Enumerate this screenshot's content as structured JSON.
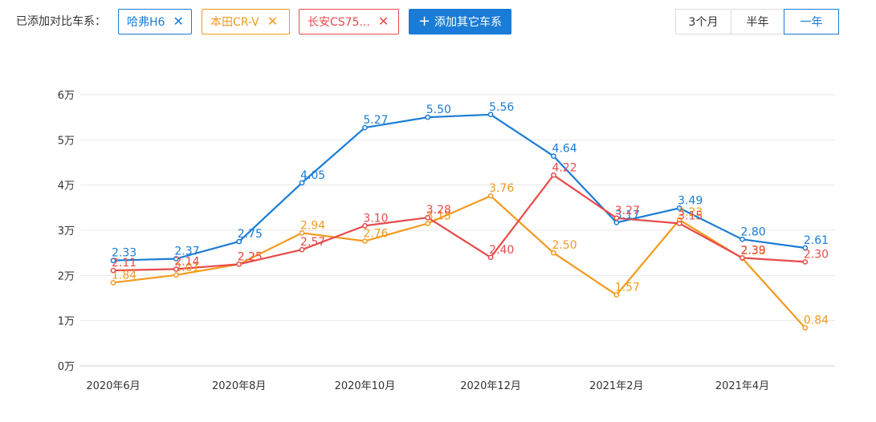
{
  "toolbar": {
    "compare_label": "已添加对比车系：",
    "chips": [
      {
        "label": "哈弗H6",
        "color": "#1a7cd6",
        "close_icon": "close-icon"
      },
      {
        "label": "本田CR-V",
        "color": "#f39a1f",
        "close_icon": "close-icon"
      },
      {
        "label": "长安CS75...",
        "color": "#e84a4a",
        "close_icon": "close-icon"
      }
    ],
    "add_plus": "+",
    "add_label": "添加其它车系",
    "ranges": [
      "3个月",
      "半年",
      "一年"
    ],
    "active_range": "一年"
  },
  "chart_data": {
    "type": "line",
    "x": [
      "2020年6月",
      "2020年7月",
      "2020年8月",
      "2020年9月",
      "2020年10月",
      "2020年11月",
      "2020年12月",
      "2021年1月",
      "2021年2月",
      "2021年3月",
      "2021年4月",
      "2021年5月"
    ],
    "x_tick_labels": [
      "2020年6月",
      "2020年8月",
      "2020年10月",
      "2020年12月",
      "2021年2月",
      "2021年4月"
    ],
    "y_tick_labels": [
      "0万",
      "1万",
      "2万",
      "3万",
      "4万",
      "5万",
      "6万"
    ],
    "ylim": [
      0,
      6
    ],
    "grid": true,
    "series": [
      {
        "name": "哈弗H6",
        "color": "#1a7cd6",
        "values": [
          2.33,
          2.37,
          2.75,
          4.05,
          5.27,
          5.5,
          5.56,
          4.64,
          3.17,
          3.49,
          2.8,
          2.61
        ]
      },
      {
        "name": "本田CR-V",
        "color": "#f39a1f",
        "values": [
          1.84,
          2.01,
          2.25,
          2.94,
          2.76,
          3.15,
          3.76,
          2.5,
          1.57,
          3.23,
          2.38,
          0.84
        ]
      },
      {
        "name": "长安CS75...",
        "color": "#e84a4a",
        "values": [
          2.11,
          2.14,
          2.25,
          2.57,
          3.1,
          3.28,
          2.4,
          4.22,
          3.27,
          3.15,
          2.39,
          2.3
        ]
      }
    ]
  }
}
